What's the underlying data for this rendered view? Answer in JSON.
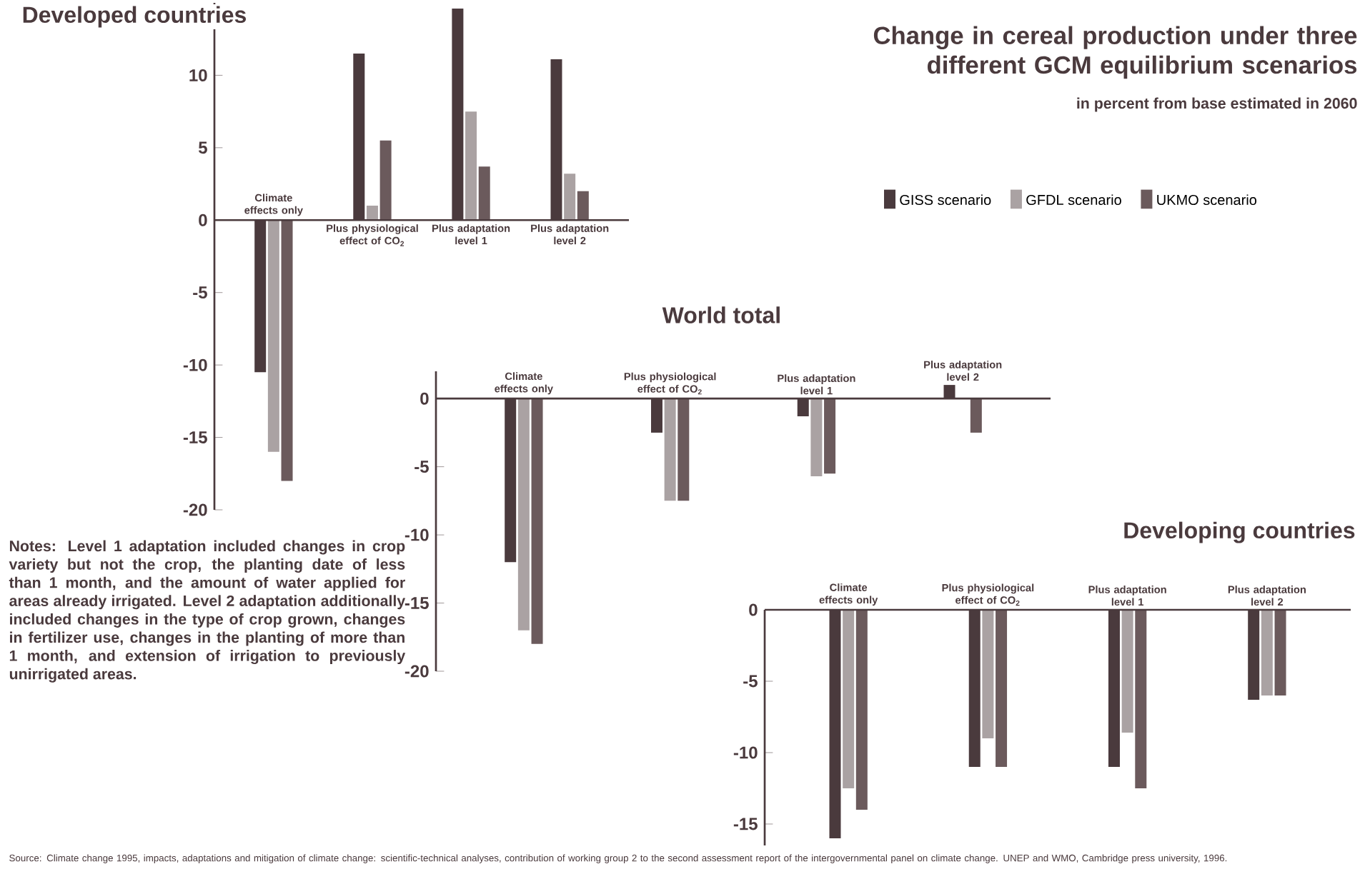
{
  "chart_data": [
    {
      "type": "bar",
      "title": "Developed countries",
      "categories": [
        "Climate effects only",
        "Plus physiological effect of CO$_{2}$",
        "Plus adaptation level 1",
        "Plus adaptation level 2"
      ],
      "series": [
        {
          "name": "GISS scenario",
          "color": "#4a3a3d",
          "values": [
            -10.5,
            11.5,
            14.6,
            11.1
          ]
        },
        {
          "name": "GFDL scenario",
          "color": "#aaa2a3",
          "values": [
            -16,
            1,
            7.5,
            3.2
          ]
        },
        {
          "name": "UKMO scenario",
          "color": "#6b5a5c",
          "values": [
            -18,
            5.5,
            3.7,
            2
          ]
        }
      ],
      "ylim": [
        -20,
        15
      ],
      "yticks": [
        -20,
        -15,
        -10,
        -5,
        0,
        5,
        10
      ],
      "legend": "right"
    },
    {
      "type": "bar",
      "title": "World total",
      "categories": [
        "Climate effects only",
        "Plus physiological effect of CO$_{2}$",
        "Plus adaptation level 1",
        "Plus adaptation level 2"
      ],
      "series": [
        {
          "color": "#4a3a3d",
          "values": [
            -12,
            -2.5,
            -1.3,
            1
          ]
        },
        {
          "color": "#aaa2a3",
          "values": [
            -17,
            -7.5,
            -5.7,
            0
          ]
        },
        {
          "color": "#6b5a5c",
          "values": [
            -18,
            -7.5,
            -5.5,
            -2.5
          ]
        }
      ],
      "ylim": [
        -20,
        2
      ],
      "yticks": [
        -20,
        -15,
        -10,
        -5,
        0
      ]
    },
    {
      "type": "bar",
      "title": "Developing countries",
      "categories": [
        "Climate effects only",
        "Plus physiological effect of CO$_{2}$",
        "Plus adaptation level 1",
        "Plus adaptation level 2"
      ],
      "series": [
        {
          "color": "#4a3a3d",
          "values": [
            -16,
            -11,
            -11,
            -6.3
          ]
        },
        {
          "color": "#aaa2a3",
          "values": [
            -12.5,
            -9,
            -8.6,
            -6
          ]
        },
        {
          "color": "#6b5a5c",
          "values": [
            -14,
            -11,
            -12.5,
            -6
          ]
        }
      ],
      "ylim": [
        -16.5,
        0
      ],
      "yticks": [
        -15,
        -10,
        -5,
        0
      ]
    },
    {
      "type": "other",
      "title": "Change in cereal production under three different GCM equilibrium scenarios",
      "subtitle": "in percent from base estimated in 2060",
      "annotations": [
        "Notes: Level 1 adaptation included changes in crop variety but not the crop, the planting date of less than 1 month, and the amount of water applied for areas already irrigated. Level 2 adaptation additionally included changes in the type of crop grown, changes in fertilizer use, changes in the planting of more than 1 month, and extension of irrigation to previously unirrigated areas.",
        "Source: Climate change 1995, impacts, adaptations and mitigation of climate change: scientific-technical analyses, contribution of working group 2 to the second assessment report of the intergovernmental panel on climate change. UNEP and WMO, Cambridge press university, 1996."
      ]
    }
  ]
}
